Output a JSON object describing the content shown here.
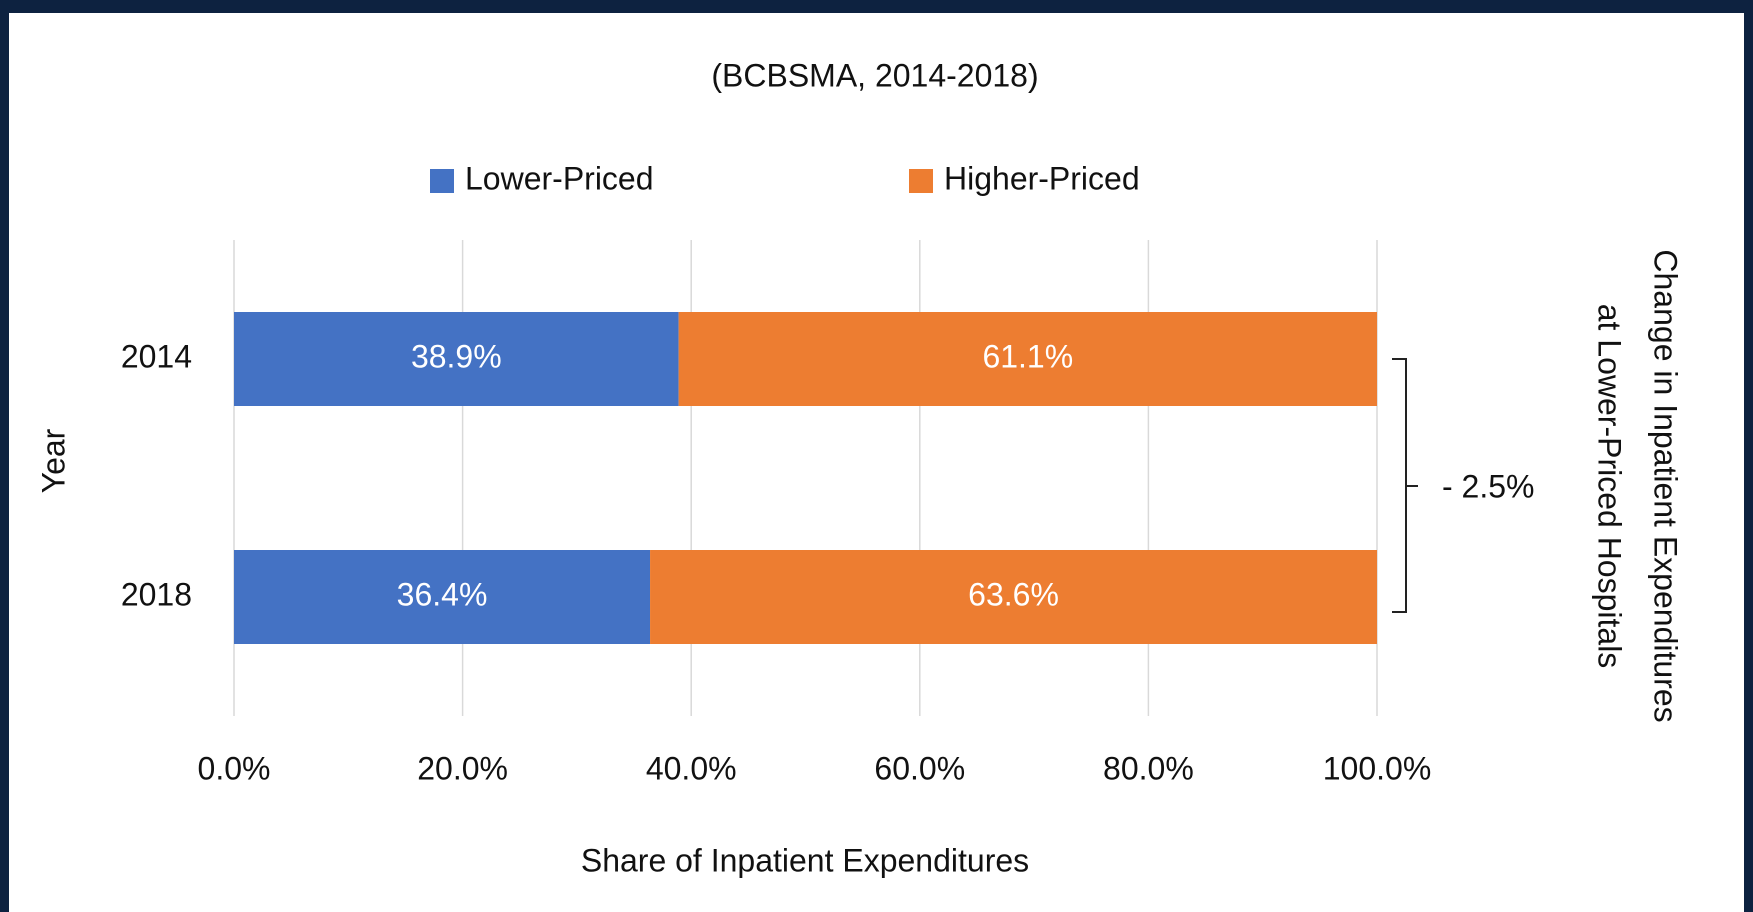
{
  "chart_data": {
    "type": "bar",
    "orientation": "horizontal",
    "stacked": true,
    "subtitle": "(BCBSMA, 2014-2018)",
    "categories": [
      "2014",
      "2018"
    ],
    "series": [
      {
        "name": "Lower-Priced",
        "color": "#4472c4",
        "values": [
          38.9,
          36.4
        ],
        "value_labels": [
          "38.9%",
          "36.4%"
        ]
      },
      {
        "name": "Higher-Priced",
        "color": "#ed7d31",
        "values": [
          61.1,
          63.6
        ],
        "value_labels": [
          "61.1%",
          "63.6%"
        ]
      }
    ],
    "xlim": [
      0,
      100
    ],
    "xticks": [
      {
        "value": 0,
        "label": "0.0%"
      },
      {
        "value": 20,
        "label": "20.0%"
      },
      {
        "value": 40,
        "label": "40.0%"
      },
      {
        "value": 60,
        "label": "60.0%"
      },
      {
        "value": 80,
        "label": "80.0%"
      },
      {
        "value": 100,
        "label": "100.0%"
      }
    ],
    "grid": true,
    "legend": "top",
    "x_axis_title": "Share of Inpatient Expenditures",
    "y_axis_title": "Year",
    "annotation": "- 2.5%",
    "annotation_color": "#ff0000",
    "right_title": [
      "Change in Inpatient Expenditures",
      "at Lower-Priced Hospitals"
    ]
  }
}
